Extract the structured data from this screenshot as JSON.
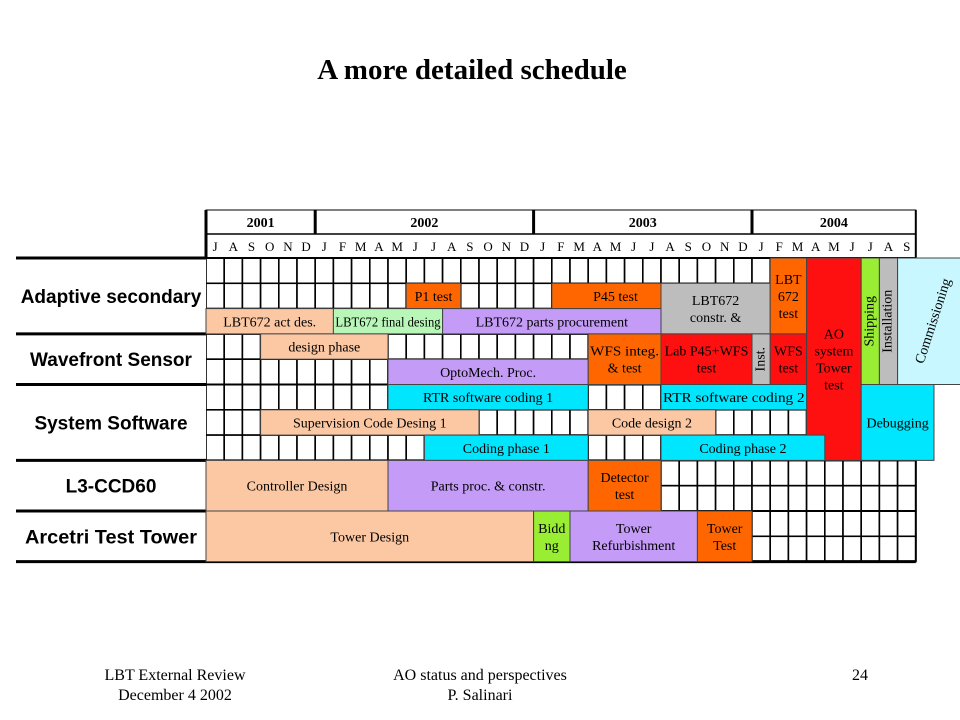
{
  "title": "A more detailed schedule",
  "schedule": {
    "years": [
      "2001",
      "2002",
      "2003",
      "2004"
    ],
    "months": [
      "J",
      "A",
      "S",
      "O",
      "N",
      "D",
      "J",
      "F",
      "M",
      "A",
      "M",
      "J",
      "J",
      "A",
      "S",
      "O",
      "N",
      "D",
      "J",
      "F",
      "M",
      "A",
      "M",
      "J",
      "J",
      "A",
      "S",
      "O",
      "N",
      "D",
      "J",
      "F",
      "M",
      "A",
      "M",
      "J",
      "J",
      "A",
      "S"
    ],
    "groups": [
      {
        "label": "Adaptive secondary",
        "rows": 3
      },
      {
        "label": "Wavefront Sensor",
        "rows": 2
      },
      {
        "label": "System Software",
        "rows": 3
      },
      {
        "label": "L3-CCD60",
        "rows": 2
      },
      {
        "label": "Arcetri Test Tower",
        "rows": 2
      }
    ],
    "colors": {
      "peach": "#fbc8a3",
      "orange": "#ff6600",
      "lightgreen": "#b8f7b8",
      "lavender": "#c49cf7",
      "gray": "#bdbdbd",
      "red": "#ff1010",
      "cyan": "#00e6ff",
      "lightcyan": "#c8f7ff",
      "lime": "#99ee33"
    },
    "tasks": [
      {
        "label": "P1 test",
        "start": 11,
        "span": 3,
        "row": 1,
        "rows": 1,
        "color": "orange"
      },
      {
        "label": "P45 test",
        "start": 19,
        "span": 7,
        "row": 1,
        "rows": 1,
        "color": "orange"
      },
      {
        "label": "LBT672 act des.",
        "start": 0,
        "span": 7,
        "row": 2,
        "rows": 1,
        "color": "peach"
      },
      {
        "label": "LBT672 final desing",
        "start": 7,
        "span": 6,
        "row": 2,
        "rows": 1,
        "color": "lightgreen"
      },
      {
        "label": "LBT672 parts procurement",
        "start": 13,
        "span": 12,
        "row": 2,
        "rows": 1,
        "color": "lavender"
      },
      {
        "label": "LBT672\nconstr. &",
        "start": 25,
        "span": 6,
        "row": 1,
        "rows": 2,
        "color": "gray"
      },
      {
        "label": "LBT\n672\ntest",
        "start": 31,
        "span": 2,
        "row": 0,
        "rows": 3,
        "color": "orange"
      },
      {
        "label": "design phase",
        "start": 3,
        "span": 7,
        "row": 3,
        "rows": 1,
        "color": "peach"
      },
      {
        "label": "OptoMech. Proc.",
        "start": 10,
        "span": 11,
        "row": 4,
        "rows": 1,
        "color": "lavender"
      },
      {
        "label": "WFS integ.\n& test",
        "start": 21,
        "span": 4,
        "row": 3,
        "rows": 2,
        "color": "orange"
      },
      {
        "label": "Lab P45+WFS\ntest",
        "start": 25,
        "span": 5,
        "row": 3,
        "rows": 2,
        "color": "red"
      },
      {
        "label": "Inst.",
        "start": 30,
        "span": 1,
        "row": 3,
        "rows": 2,
        "color": "gray",
        "vertical": true
      },
      {
        "label": "WFS\ntest",
        "start": 31,
        "span": 2,
        "row": 3,
        "rows": 2,
        "color": "red"
      },
      {
        "label": "AO\nsystem\nTower\ntest",
        "start": 33,
        "span": 3,
        "row": 0,
        "rows": 8,
        "color": "red"
      },
      {
        "label": "Shipping",
        "start": 36,
        "span": 1,
        "row": 0,
        "rows": 5,
        "color": "lime",
        "vertical": true
      },
      {
        "label": "Installation",
        "start": 37,
        "span": 1,
        "row": 0,
        "rows": 5,
        "color": "gray",
        "vertical": true
      },
      {
        "label": "Commissioning",
        "start": 38,
        "span": 4,
        "row": 0,
        "rows": 5,
        "color": "lightcyan",
        "vertical": true
      },
      {
        "label": "RTR software coding 1",
        "start": 10,
        "span": 11,
        "row": 5,
        "rows": 1,
        "color": "cyan"
      },
      {
        "label": "RTR software coding  2",
        "start": 25,
        "span": 8,
        "row": 5,
        "rows": 1,
        "color": "cyan"
      },
      {
        "label": "Supervision Code Desing 1",
        "start": 3,
        "span": 12,
        "row": 6,
        "rows": 1,
        "color": "peach"
      },
      {
        "label": "Code design 2",
        "start": 21,
        "span": 7,
        "row": 6,
        "rows": 1,
        "color": "peach"
      },
      {
        "label": "Coding phase 1",
        "start": 12,
        "span": 9,
        "row": 7,
        "rows": 1,
        "color": "cyan"
      },
      {
        "label": "Coding phase 2",
        "start": 25,
        "span": 9,
        "row": 7,
        "rows": 1,
        "color": "cyan"
      },
      {
        "label": "Debugging",
        "start": 36,
        "span": 4,
        "row": 5,
        "rows": 3,
        "color": "cyan"
      },
      {
        "label": "Controller Design",
        "start": 0,
        "span": 10,
        "row": 8,
        "rows": 2,
        "color": "peach"
      },
      {
        "label": "Parts proc. & constr.",
        "start": 10,
        "span": 11,
        "row": 8,
        "rows": 2,
        "color": "lavender"
      },
      {
        "label": "Detector\ntest",
        "start": 21,
        "span": 4,
        "row": 8,
        "rows": 2,
        "color": "orange"
      },
      {
        "label": "Tower Design",
        "start": 0,
        "span": 18,
        "row": 10,
        "rows": 2,
        "color": "peach"
      },
      {
        "label": "Bidd\nng",
        "start": 18,
        "span": 2,
        "row": 10,
        "rows": 2,
        "color": "lime"
      },
      {
        "label": "Tower\nRefurbishment",
        "start": 20,
        "span": 7,
        "row": 10,
        "rows": 2,
        "color": "lavender"
      },
      {
        "label": "Tower\nTest",
        "start": 27,
        "span": 3,
        "row": 10,
        "rows": 2,
        "color": "orange"
      }
    ]
  },
  "footer": {
    "left_line1": "LBT External Review",
    "left_line2": "December 4 2002",
    "center_line1": "AO status and perspectives",
    "center_line2": "P. Salinari",
    "page_number": "24"
  }
}
